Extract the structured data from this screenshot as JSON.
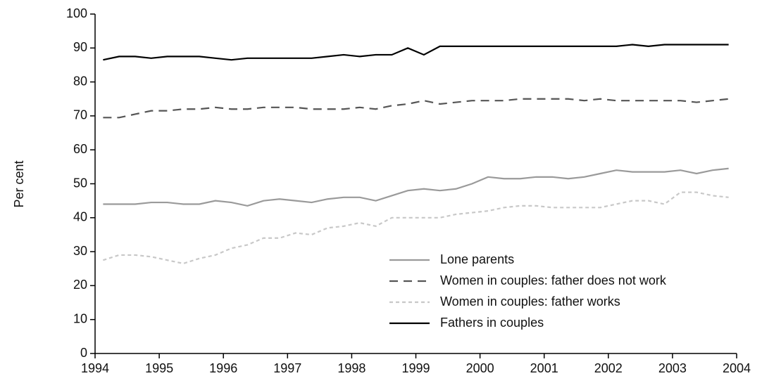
{
  "chart_data": {
    "type": "line",
    "y_label": "Per cent",
    "x": [
      1994.125,
      1994.375,
      1994.625,
      1994.875,
      1995.125,
      1995.375,
      1995.625,
      1995.875,
      1996.125,
      1996.375,
      1996.625,
      1996.875,
      1997.125,
      1997.375,
      1997.625,
      1997.875,
      1998.125,
      1998.375,
      1998.625,
      1998.875,
      1999.125,
      1999.375,
      1999.625,
      1999.875,
      2000.125,
      2000.375,
      2000.625,
      2000.875,
      2001.125,
      2001.375,
      2001.625,
      2001.875,
      2002.125,
      2002.375,
      2002.625,
      2002.875,
      2003.125,
      2003.375,
      2003.625,
      2003.875
    ],
    "xlim": [
      1994,
      2004
    ],
    "xticks": [
      1994,
      1995,
      1996,
      1997,
      1998,
      1999,
      2000,
      2001,
      2002,
      2003,
      2004
    ],
    "ylim": [
      0,
      100
    ],
    "yticks": [
      0,
      10,
      20,
      30,
      40,
      50,
      60,
      70,
      80,
      90,
      100
    ],
    "legend": "lower right",
    "series": [
      {
        "name": "Lone parents",
        "color": "#9a9a9a",
        "dash": "solid",
        "values": [
          44,
          44,
          44,
          44.5,
          44.5,
          44,
          44,
          45,
          44.5,
          43.5,
          45,
          45.5,
          45,
          44.5,
          45.5,
          46,
          46,
          45,
          46.5,
          48,
          48.5,
          48,
          48.5,
          50,
          52,
          51.5,
          51.5,
          52,
          52,
          51.5,
          52,
          53,
          54,
          53.5,
          53.5,
          53.5,
          54,
          53,
          54,
          54.5
        ]
      },
      {
        "name": "Women in couples: father does not work",
        "color": "#555555",
        "dash": "dashed",
        "values": [
          69.5,
          69.5,
          70.5,
          71.5,
          71.5,
          72,
          72,
          72.5,
          72,
          72,
          72.5,
          72.5,
          72.5,
          72,
          72,
          72,
          72.5,
          72,
          73,
          73.5,
          74.5,
          73.5,
          74,
          74.5,
          74.5,
          74.5,
          75,
          75,
          75,
          75,
          74.5,
          75,
          74.5,
          74.5,
          74.5,
          74.5,
          74.5,
          74,
          74.5,
          75
        ]
      },
      {
        "name": "Women in couples: father works",
        "color": "#c8c8c8",
        "dash": "dotted",
        "values": [
          27.5,
          29,
          29,
          28.5,
          27.5,
          26.5,
          28,
          29,
          31,
          32,
          34,
          34,
          35.5,
          35,
          37,
          37.5,
          38.5,
          37.5,
          40,
          40,
          40,
          40,
          41,
          41.5,
          42,
          43,
          43.5,
          43.5,
          43,
          43,
          43,
          43,
          44,
          45,
          45,
          44,
          47.5,
          47.5,
          46.5,
          46
        ]
      },
      {
        "name": "Fathers in couples",
        "color": "#000000",
        "dash": "solid",
        "values": [
          86.5,
          87.5,
          87.5,
          87,
          87.5,
          87.5,
          87.5,
          87,
          86.5,
          87,
          87,
          87,
          87,
          87,
          87.5,
          88,
          87.5,
          88,
          88,
          90,
          88,
          90.5,
          90.5,
          90.5,
          90.5,
          90.5,
          90.5,
          90.5,
          90.5,
          90.5,
          90.5,
          90.5,
          90.5,
          91,
          90.5,
          91,
          91,
          91,
          91,
          91
        ]
      }
    ]
  }
}
